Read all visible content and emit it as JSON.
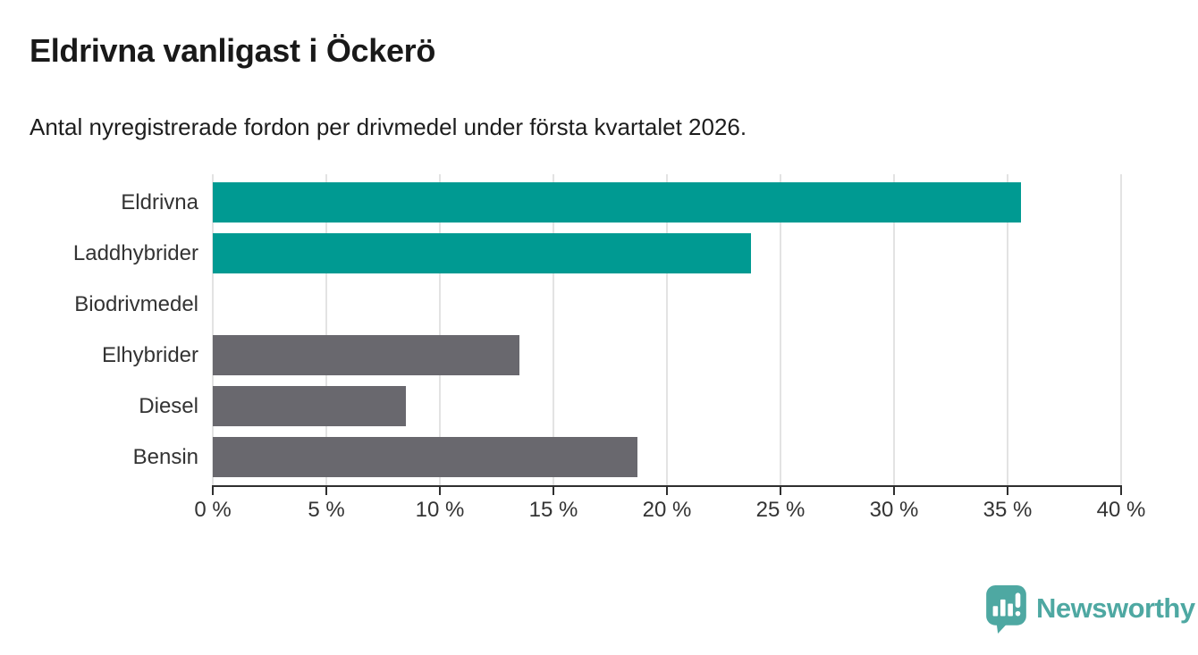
{
  "header": {
    "title": "Eldrivna vanligast i Öckerö",
    "subtitle": "Antal nyregistrerade fordon per drivmedel under första kvartalet 2026."
  },
  "chart_data": {
    "type": "bar",
    "orientation": "horizontal",
    "title": "Eldrivna vanligast i Öckerö",
    "subtitle": "Antal nyregistrerade fordon per drivmedel under första kvartalet 2026.",
    "categories": [
      "Eldrivna",
      "Laddhybrider",
      "Biodrivmedel",
      "Elhybrider",
      "Diesel",
      "Bensin"
    ],
    "values": [
      35.6,
      23.7,
      0,
      13.5,
      8.5,
      18.7
    ],
    "unit": "%",
    "xlabel": "",
    "ylabel": "",
    "xlim": [
      0,
      40
    ],
    "x_ticks": [
      0,
      5,
      10,
      15,
      20,
      25,
      30,
      35,
      40
    ],
    "x_tick_labels": [
      "0 %",
      "5 %",
      "10 %",
      "15 %",
      "20 %",
      "25 %",
      "30 %",
      "35 %",
      "40 %"
    ],
    "bar_colors": [
      "#009a92",
      "#009a92",
      "#69686e",
      "#69686e",
      "#69686e",
      "#69686e"
    ],
    "colors": {
      "highlight": "#009a92",
      "default": "#69686e",
      "gridline": "#e3e3e3",
      "axis": "#2f2f2f",
      "text": "#333333"
    },
    "grid": true,
    "legend": false
  },
  "footer": {
    "brand": "Newsworthy",
    "brand_color": "#4ea8a2",
    "logo_icon": "newsworthy-pin-barchart"
  }
}
